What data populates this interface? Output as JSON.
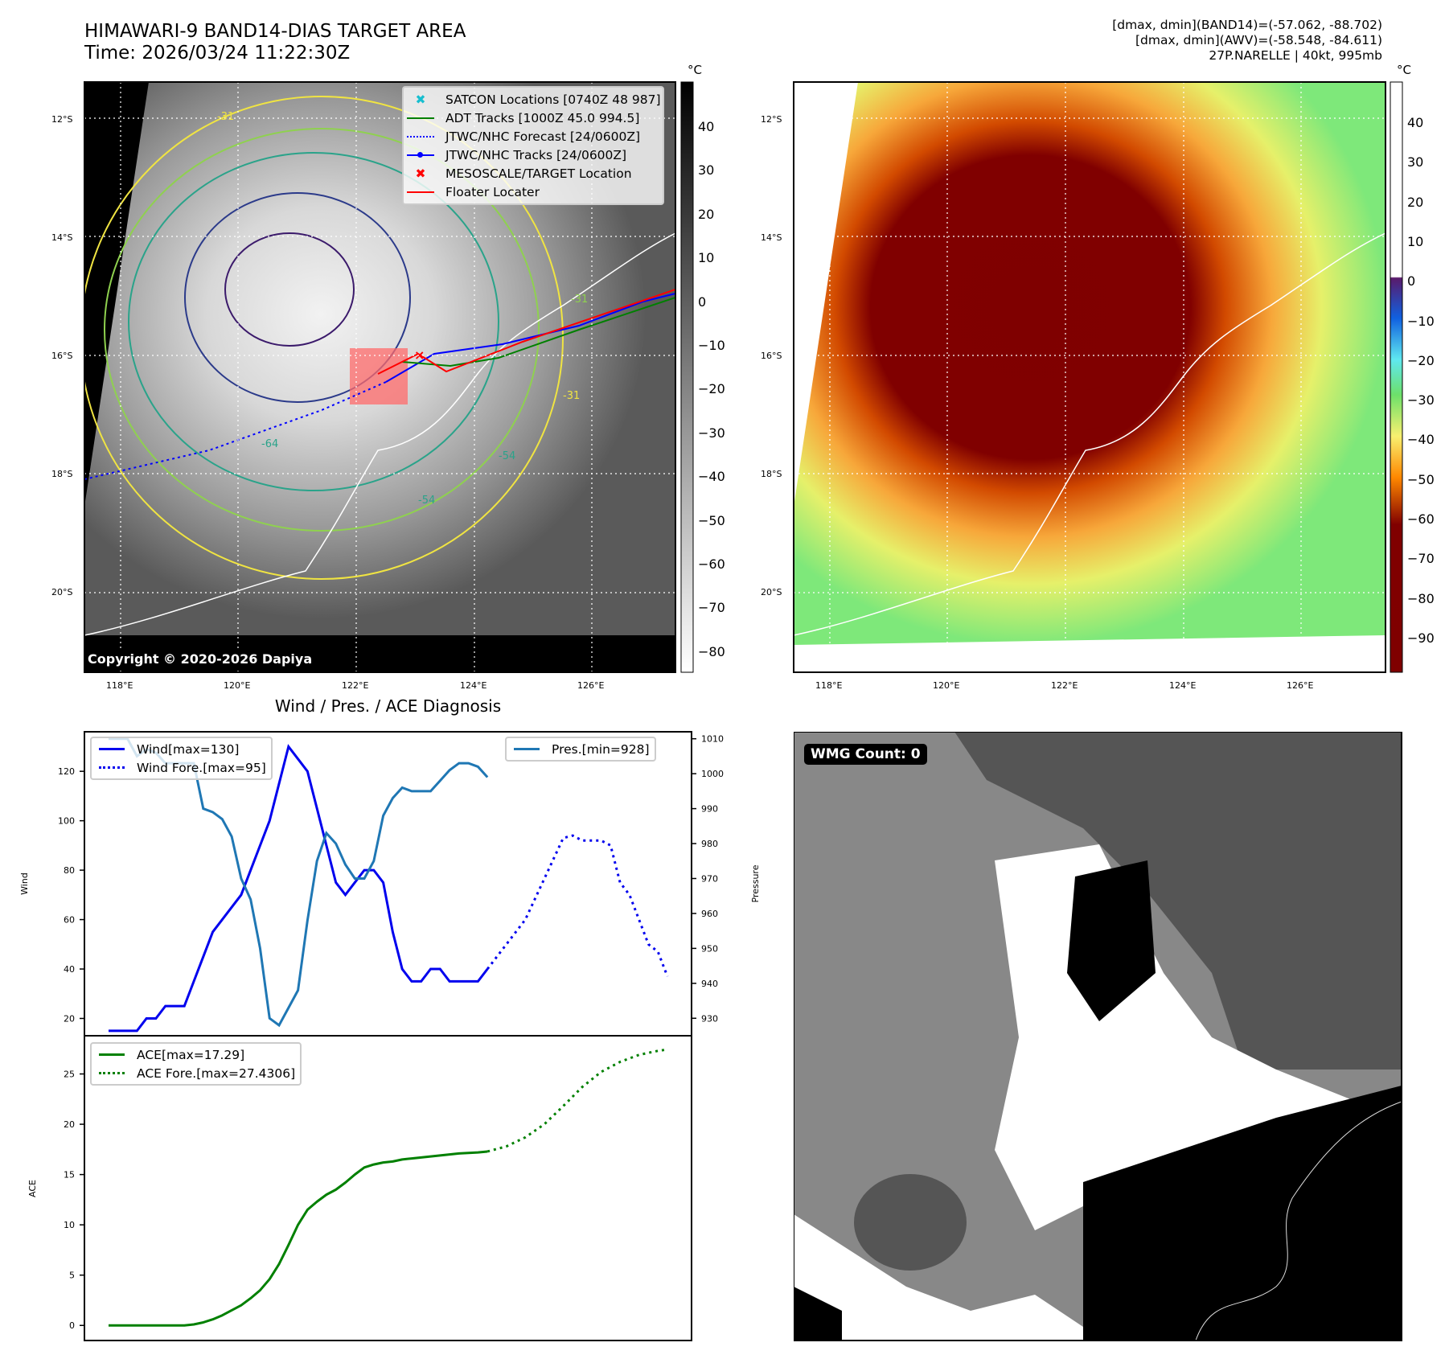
{
  "header": {
    "title_line1": "HIMAWARI-9 BAND14-DIAS TARGET AREA",
    "title_line2": "Time: 2026/03/24 11:22:30Z",
    "info_line1": "[dmax, dmin](BAND14)=(-57.062, -88.702)",
    "info_line2": "[dmax, dmin](AWV)=(-58.548, -84.611)",
    "info_line3": "27P.NARELLE | 40kt, 995mb"
  },
  "map_left": {
    "lat_labels": [
      "12°S",
      "14°S",
      "16°S",
      "18°S",
      "20°S"
    ],
    "lon_labels": [
      "118°E",
      "120°E",
      "122°E",
      "124°E",
      "126°E"
    ],
    "contour_labels": [
      "-31",
      "-31",
      "-64",
      "-54",
      "-54",
      "-31"
    ],
    "copyright": "Copyright © 2020-2026 Dapiya",
    "legend": [
      {
        "label": "SATCON Locations [0740Z 48 987]",
        "icon": "x-marker-icon",
        "color": "#17becf"
      },
      {
        "label": "ADT Tracks [1000Z 45.0 994.5]",
        "icon": "line-icon",
        "color": "#008000"
      },
      {
        "label": "JTWC/NHC Forecast [24/0600Z]",
        "icon": "dotted-line-icon",
        "color": "#0000ff"
      },
      {
        "label": "JTWC/NHC Tracks [24/0600Z]",
        "icon": "line-dot-icon",
        "color": "#0000ff"
      },
      {
        "label": "MESOSCALE/TARGET Location",
        "icon": "x-marker-icon",
        "color": "#ff0000"
      },
      {
        "label": "Floater Locater",
        "icon": "line-icon",
        "color": "#ff0000"
      }
    ],
    "colorbar": {
      "unit": "°C",
      "ticks": [
        "40",
        "30",
        "20",
        "10",
        "0",
        "−10",
        "−20",
        "−30",
        "−40",
        "−50",
        "−60",
        "−70",
        "−80"
      ]
    }
  },
  "map_right": {
    "lat_labels": [
      "12°S",
      "14°S",
      "16°S",
      "18°S",
      "20°S"
    ],
    "lon_labels": [
      "118°E",
      "120°E",
      "122°E",
      "124°E",
      "126°E"
    ],
    "colorbar": {
      "unit": "°C",
      "ticks": [
        "40",
        "30",
        "20",
        "10",
        "0",
        "−10",
        "−20",
        "−30",
        "−40",
        "−50",
        "−60",
        "−70",
        "−80",
        "−90"
      ]
    }
  },
  "wmg_panel": {
    "label": "WMG Count: 0"
  },
  "chart_data": [
    {
      "type": "line",
      "title": "Wind / Pres. / ACE Diagnosis",
      "ylabel": "Wind",
      "ylabel_right": "Pressure",
      "ylim": [
        13,
        136
      ],
      "ylim_right": [
        925,
        1012
      ],
      "yticks": [
        20,
        40,
        60,
        80,
        100,
        120
      ],
      "yticks_right": [
        930,
        940,
        950,
        960,
        970,
        980,
        990,
        1000,
        1010
      ],
      "grid": false,
      "legend_left": [
        "Wind[max=130]",
        "Wind Fore.[max=95]"
      ],
      "legend_right": [
        "Pres.[min=928]"
      ],
      "x_count": 60,
      "series": [
        {
          "name": "Wind[max=130]",
          "style": "solid",
          "color": "#0000ee",
          "x": [
            0,
            1,
            2,
            3,
            4,
            5,
            6,
            7,
            8,
            9,
            10,
            11,
            12,
            13,
            14,
            15,
            16,
            17,
            18,
            19,
            20,
            21,
            22,
            23,
            24,
            25,
            26,
            27,
            28,
            29,
            30,
            31,
            32,
            33,
            34,
            35,
            36,
            37,
            38,
            39,
            40
          ],
          "values": [
            15,
            15,
            15,
            15,
            20,
            20,
            25,
            25,
            25,
            35,
            45,
            55,
            60,
            65,
            70,
            80,
            90,
            100,
            115,
            130,
            125,
            120,
            105,
            90,
            75,
            70,
            75,
            80,
            80,
            75,
            55,
            40,
            35,
            35,
            40,
            40,
            35,
            35,
            35,
            35,
            40
          ]
        },
        {
          "name": "Wind Fore.[max=95]",
          "style": "dotted",
          "color": "#0000ee",
          "x": [
            40,
            44,
            48,
            49,
            50,
            52,
            53,
            54,
            55,
            57,
            58,
            59
          ],
          "values": [
            40,
            60,
            93,
            94,
            92,
            92,
            90,
            75,
            70,
            50,
            47,
            37
          ]
        },
        {
          "name": "Pres.[min=928]",
          "style": "solid",
          "color": "#1f77b4",
          "axis": "right",
          "x": [
            0,
            1,
            2,
            3,
            4,
            5,
            6,
            7,
            8,
            9,
            10,
            11,
            12,
            13,
            14,
            15,
            16,
            17,
            18,
            19,
            20,
            21,
            22,
            23,
            24,
            25,
            26,
            27,
            28,
            29,
            30,
            31,
            32,
            33,
            34,
            35,
            36,
            37,
            38,
            39,
            40
          ],
          "values": [
            1010,
            1010,
            1010,
            1005,
            1007,
            1006,
            1003,
            1003,
            1003,
            1003,
            990,
            989,
            987,
            982,
            970,
            964,
            950,
            930,
            928,
            933,
            938,
            958,
            975,
            983,
            980,
            974,
            970,
            970,
            975,
            988,
            993,
            996,
            995,
            995,
            995,
            998,
            1001,
            1003,
            1003,
            1002,
            999
          ]
        }
      ]
    },
    {
      "type": "line",
      "ylabel": "ACE",
      "ylim": [
        -1.5,
        28.8
      ],
      "yticks": [
        0,
        5,
        10,
        15,
        20,
        25
      ],
      "grid": false,
      "legend": [
        "ACE[max=17.29]",
        "ACE Fore.[max=27.4306]"
      ],
      "series": [
        {
          "name": "ACE[max=17.29]",
          "style": "solid",
          "color": "#008000",
          "x": [
            0,
            4,
            8,
            9,
            10,
            11,
            12,
            13,
            14,
            15,
            16,
            17,
            18,
            19,
            20,
            21,
            22,
            23,
            24,
            25,
            26,
            27,
            28,
            29,
            30,
            31,
            32,
            33,
            34,
            35,
            36,
            37,
            38,
            39,
            40
          ],
          "values": [
            0,
            0,
            0,
            0.1,
            0.3,
            0.6,
            1,
            1.5,
            2,
            2.7,
            3.5,
            4.6,
            6.1,
            8,
            10,
            11.5,
            12.3,
            13,
            13.5,
            14.2,
            15,
            15.7,
            16,
            16.2,
            16.3,
            16.5,
            16.6,
            16.7,
            16.8,
            16.9,
            17,
            17.1,
            17.15,
            17.2,
            17.29
          ]
        },
        {
          "name": "ACE Fore.[max=27.4306]",
          "style": "dotted",
          "color": "#008000",
          "x": [
            40,
            42,
            44,
            46,
            48,
            50,
            52,
            54,
            56,
            58,
            59
          ],
          "values": [
            17.29,
            17.8,
            18.7,
            20,
            21.8,
            23.7,
            25.2,
            26.2,
            26.9,
            27.3,
            27.43
          ]
        }
      ]
    }
  ]
}
